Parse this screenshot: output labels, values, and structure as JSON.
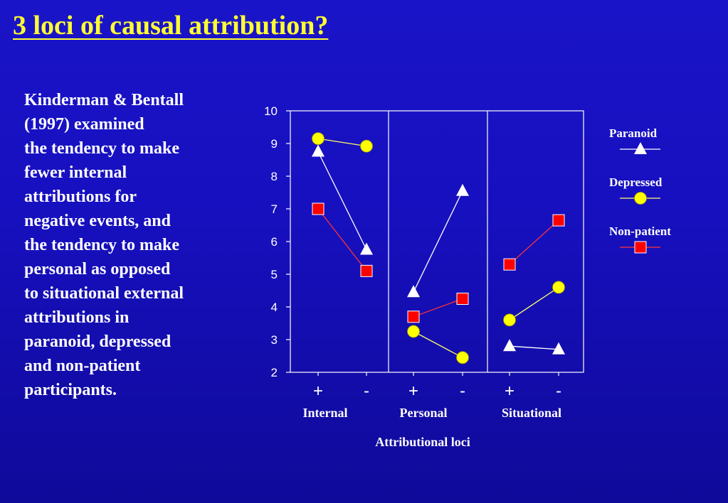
{
  "slide": {
    "title": "3 loci of causal attribution?",
    "body_lines": [
      "Kinderman & Bentall",
      "(1997) examined",
      "the tendency  to make",
      "fewer internal",
      "attributions for",
      "negative events, and",
      "the tendency to make",
      "personal as opposed",
      "to situational external",
      "attributions in",
      "paranoid, depressed",
      "and non-patient",
      "participants."
    ]
  },
  "colors": {
    "background": "#1a14c8",
    "title": "#ffff33",
    "paranoid": "#ffffff",
    "depressed": "#ffff00",
    "non_patient": "#ff0000",
    "line_depressed": "#ffff66",
    "line_non_patient": "#ff3333"
  },
  "chart_data": {
    "type": "line",
    "title": "",
    "xlabel": "Attributional loci",
    "ylabel": "",
    "ylim": [
      2,
      10
    ],
    "yticks": [
      "2",
      "3",
      "4",
      "5",
      "6",
      "7",
      "8",
      "9",
      "10"
    ],
    "x": [
      "+",
      "-",
      "+",
      "-",
      "+",
      "-"
    ],
    "groups": [
      {
        "label": "Internal",
        "indices": [
          0,
          1
        ]
      },
      {
        "label": "Personal",
        "indices": [
          2,
          3
        ]
      },
      {
        "label": "Situational",
        "indices": [
          4,
          5
        ]
      }
    ],
    "legend_position": "right",
    "series": [
      {
        "name": "Paranoid",
        "marker": "triangle",
        "color": "#ffffff",
        "values": [
          8.75,
          5.75,
          4.45,
          7.55,
          2.8,
          2.7
        ]
      },
      {
        "name": "Depressed",
        "marker": "circle",
        "color": "#ffff00",
        "values": [
          9.15,
          8.92,
          3.25,
          2.45,
          3.6,
          4.6
        ]
      },
      {
        "name": "Non-patient",
        "marker": "square",
        "color": "#ff0000",
        "values": [
          7.0,
          5.1,
          3.7,
          4.25,
          5.3,
          6.65
        ]
      }
    ]
  }
}
